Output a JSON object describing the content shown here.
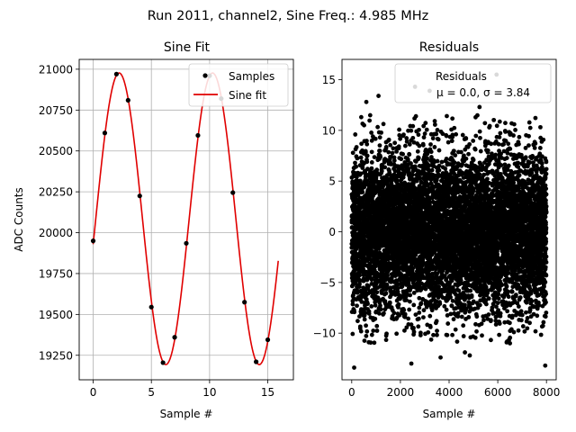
{
  "figure_title": "Run 2011, channel2, Sine Freq.: 4.985 MHz",
  "colors": {
    "samples": "#000000",
    "fit": "#e00000",
    "grid": "#b0b0b0",
    "axes": "#000000",
    "legend_border": "#cccccc"
  },
  "chart_data": [
    {
      "type": "scatter+line",
      "title": "Sine Fit",
      "xlabel": "Sample #",
      "ylabel": "ADC Counts",
      "xlim": [
        -1.2,
        17.2
      ],
      "ylim": [
        19100,
        21060
      ],
      "xticks": [
        0,
        5,
        10,
        15
      ],
      "yticks": [
        19250,
        19500,
        19750,
        20000,
        20250,
        20500,
        20750,
        21000
      ],
      "grid": true,
      "legend": {
        "location": "top-right",
        "entries": [
          "Samples",
          "Sine fit"
        ]
      },
      "series": [
        {
          "name": "Samples",
          "kind": "scatter",
          "x": [
            0,
            1,
            2,
            3,
            4,
            5,
            6,
            7,
            8,
            9,
            10,
            11,
            12,
            13,
            14,
            15
          ],
          "y": [
            19950,
            20610,
            20970,
            20810,
            20225,
            19545,
            19205,
            19360,
            19935,
            20595,
            20960,
            20820,
            20245,
            19575,
            19210,
            19345
          ]
        },
        {
          "name": "Sine fit",
          "kind": "line",
          "model": {
            "offset": 20085,
            "amplitude": 892,
            "period_samples": 8.025,
            "phase_rad": -0.175
          },
          "x_range": [
            0,
            15.9
          ]
        }
      ]
    },
    {
      "type": "scatter",
      "title": "Residuals",
      "xlabel": "Sample #",
      "ylabel": "",
      "xlim": [
        -400,
        8400
      ],
      "ylim": [
        -14.6,
        17
      ],
      "xticks": [
        0,
        2000,
        4000,
        6000,
        8000
      ],
      "yticks": [
        -10,
        -5,
        0,
        5,
        10,
        15
      ],
      "grid": false,
      "legend": {
        "location": "top-right",
        "entries": [
          "Residuals"
        ],
        "stats_text": "μ = 0.0, σ = 3.84"
      },
      "series": [
        {
          "name": "Residuals",
          "kind": "scatter",
          "n_points": 8000,
          "mu": 0.0,
          "sigma": 3.84,
          "outliers": [
            [
              2600,
              14.3
            ],
            [
              5950,
              15.5
            ],
            [
              3200,
              13.9
            ],
            [
              1100,
              13.4
            ],
            [
              600,
              12.8
            ],
            [
              5250,
              12.3
            ],
            [
              100,
              -13.4
            ],
            [
              2450,
              -13.0
            ],
            [
              7950,
              -13.2
            ],
            [
              3650,
              -12.4
            ],
            [
              4650,
              -11.9
            ],
            [
              4850,
              -12.2
            ],
            [
              6500,
              -11.0
            ],
            [
              700,
              -10.9
            ]
          ]
        }
      ]
    }
  ]
}
